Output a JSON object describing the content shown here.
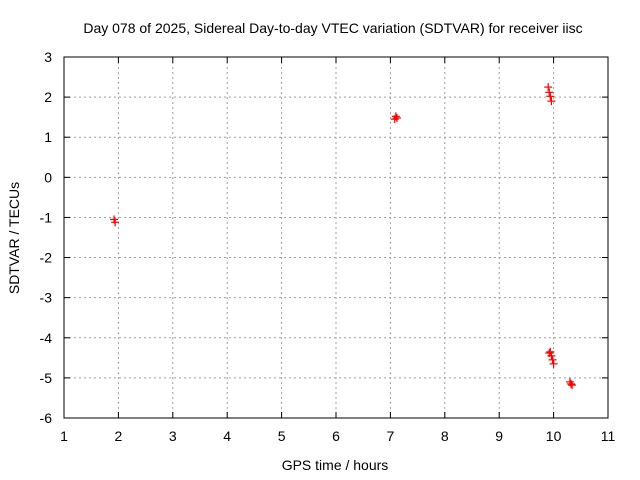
{
  "chart_data": {
    "type": "scatter",
    "title": "Day 078 of 2025, Sidereal Day-to-day VTEC variation (SDTVAR) for receiver iisc",
    "xlabel": "GPS time / hours",
    "ylabel": "SDTVAR / TECUs",
    "xlim": [
      1,
      11
    ],
    "ylim": [
      -6,
      3
    ],
    "xticks": [
      1,
      2,
      3,
      4,
      5,
      6,
      7,
      8,
      9,
      10,
      11
    ],
    "yticks": [
      3,
      2,
      1,
      0,
      -1,
      -2,
      -3,
      -4,
      -5,
      -6
    ],
    "grid": true,
    "marker": "+",
    "color": "#ff0000",
    "series": [
      {
        "name": "SDTVAR",
        "points": [
          {
            "x": 1.92,
            "y": -1.05
          },
          {
            "x": 1.94,
            "y": -1.12
          },
          {
            "x": 7.08,
            "y": 1.45
          },
          {
            "x": 7.1,
            "y": 1.52
          },
          {
            "x": 7.12,
            "y": 1.48
          },
          {
            "x": 9.9,
            "y": 2.25
          },
          {
            "x": 9.92,
            "y": 2.12
          },
          {
            "x": 9.94,
            "y": 2.02
          },
          {
            "x": 9.96,
            "y": 1.9
          },
          {
            "x": 9.92,
            "y": -4.38
          },
          {
            "x": 9.94,
            "y": -4.35
          },
          {
            "x": 9.96,
            "y": -4.45
          },
          {
            "x": 9.98,
            "y": -4.55
          },
          {
            "x": 10.0,
            "y": -4.65
          },
          {
            "x": 10.3,
            "y": -5.1
          },
          {
            "x": 10.32,
            "y": -5.15
          },
          {
            "x": 10.34,
            "y": -5.18
          }
        ]
      }
    ]
  }
}
